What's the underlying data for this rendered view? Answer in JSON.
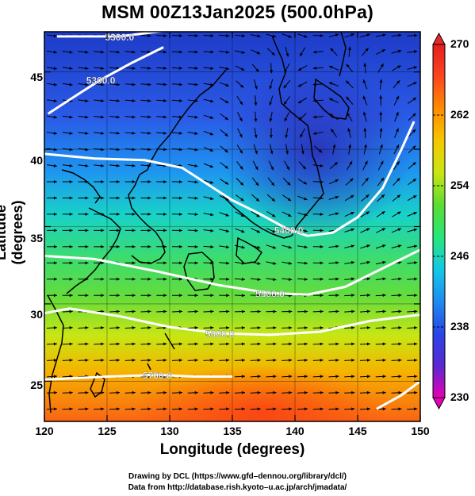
{
  "title": "MSM 00Z13Jan2025 (500.0hPa)",
  "axes": {
    "xlabel": "Longitude (degrees)",
    "ylabel": "Latitude  (degrees)",
    "x_ticks": [
      "120",
      "125",
      "130",
      "135",
      "140",
      "145",
      "150"
    ],
    "y_ticks": [
      "45",
      "40",
      "35",
      "30",
      "25"
    ],
    "xlim": [
      120,
      150
    ],
    "ylim": [
      22.4,
      47.6
    ]
  },
  "colorbar": {
    "ticks": [
      "270",
      "262",
      "254",
      "246",
      "238",
      "230"
    ],
    "range": [
      230,
      270
    ],
    "colors": [
      "#e600b4",
      "#5a28d2",
      "#2846e6",
      "#1e8cf0",
      "#14c8e6",
      "#28e678",
      "#5adc32",
      "#c8e614",
      "#f5c800",
      "#ff8c00",
      "#fa461e",
      "#e61e1e"
    ]
  },
  "contours": [
    {
      "label": "5300.0",
      "lat": [
        47.3,
        47.3,
        47.9
      ],
      "lon": [
        121,
        126,
        132
      ]
    },
    {
      "label": "5300.0",
      "lat": [
        42.3,
        43.2,
        44.5,
        45.6,
        46.6
      ],
      "lon": [
        120.3,
        122,
        124.5,
        127,
        129.5
      ]
    },
    {
      "label": "5400.0",
      "lat": [
        39.7,
        39.4,
        39.3,
        38.8,
        36.7,
        35.9,
        34.8,
        34.4,
        34.6,
        35.6,
        37.5,
        40,
        41.8
      ],
      "lon": [
        120,
        124,
        128,
        131,
        135,
        137,
        139.5,
        141,
        143,
        145,
        147,
        148.5,
        149.5
      ]
    },
    {
      "label": "5500.0",
      "lat": [
        33.1,
        32.9,
        32.1,
        31.2,
        30.7,
        30.6,
        31.1,
        32.3,
        33.5
      ],
      "lon": [
        120,
        124,
        129,
        134,
        138,
        141,
        144,
        147,
        150
      ]
    },
    {
      "label": "5600.0",
      "lat": [
        29.4,
        29.7,
        29.2,
        28.5,
        28.1,
        28.0,
        28.2,
        28.9,
        29.3
      ],
      "lon": [
        120,
        122,
        126,
        130,
        134,
        138,
        142,
        146,
        150
      ]
    },
    {
      "label": "5700.0",
      "lat": [
        25.1,
        25.3,
        25.4,
        25.3,
        25.3
      ],
      "lon": [
        120,
        125,
        129,
        132,
        135
      ]
    },
    {
      "label": "",
      "lat": [
        23.2,
        24.1,
        25.0
      ],
      "lon": [
        146.5,
        148.5,
        150
      ]
    }
  ],
  "credits": {
    "line1": "Drawing by DCL (https://www.gfd–dennou.org/library/dcl/)",
    "line2": "Data from http://database.rish.kyoto–u.ac.jp/arch/jmadata/"
  }
}
